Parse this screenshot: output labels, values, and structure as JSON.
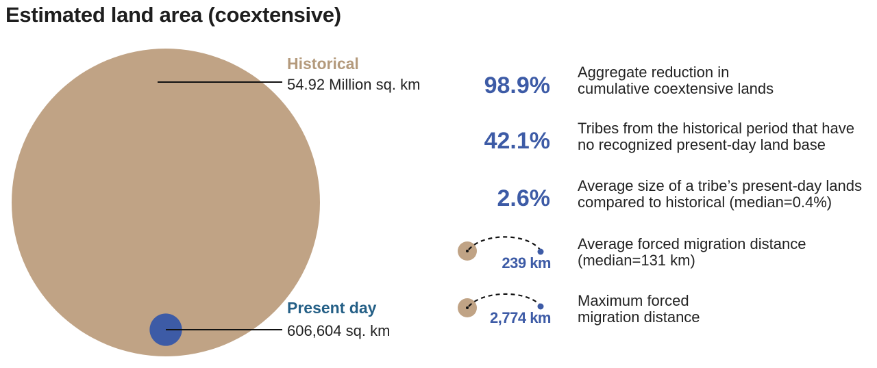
{
  "title": "Estimated land area (coextensive)",
  "colors": {
    "historical": "#c0a385",
    "present": "#3d5ba6",
    "historical_label": "#b49a7c",
    "present_label": "#245f86",
    "stat_value": "#3d5ba6",
    "leader_line": "#111111"
  },
  "chart_data": {
    "type": "bubble",
    "title": "Estimated land area (coextensive)",
    "unit": "sq. km",
    "series": [
      {
        "name": "Historical",
        "value": 54920000,
        "label": "54.92 Million sq. km"
      },
      {
        "name": "Present day",
        "value": 606604,
        "label": "606,604 sq. km"
      }
    ]
  },
  "stats": [
    {
      "value": "98.9%",
      "lines": [
        "Aggregate reduction in",
        "cumulative coextensive lands"
      ]
    },
    {
      "value": "42.1%",
      "lines": [
        "Tribes from the historical period that have",
        "no recognized present-day land base"
      ]
    },
    {
      "value": "2.6%",
      "lines": [
        "Average size of a tribe’s present-day lands",
        "compared to historical (median=0.4%)"
      ]
    }
  ],
  "migrations": [
    {
      "value": "239 km",
      "km": 239,
      "lines": [
        "Average forced migration distance",
        "(median=131 km)"
      ]
    },
    {
      "value": "2,774 km",
      "km": 2774,
      "lines": [
        "Maximum forced",
        "migration distance"
      ]
    }
  ]
}
